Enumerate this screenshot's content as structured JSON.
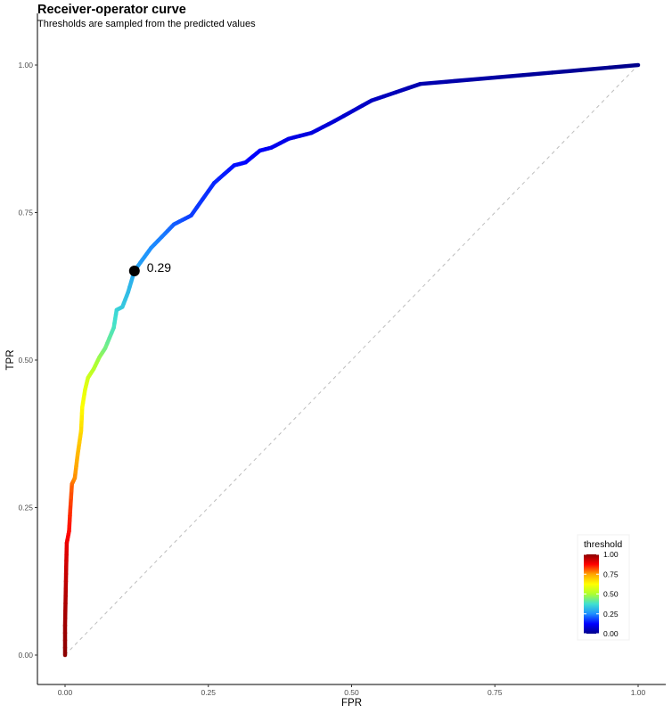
{
  "chart_data": {
    "type": "line",
    "title": "Receiver-operator curve",
    "subtitle": "Thresholds are sampled from the predicted values",
    "xlabel": "FPR",
    "ylabel": "TPR",
    "xlim": [
      0,
      1
    ],
    "ylim": [
      0,
      1
    ],
    "x_ticks": [
      "0.00",
      "0.25",
      "0.50",
      "0.75",
      "1.00"
    ],
    "y_ticks": [
      "0.00",
      "0.25",
      "0.50",
      "0.75",
      "1.00"
    ],
    "grid": false,
    "reference_line": "diagonal",
    "legend": {
      "title": "threshold",
      "placement": "bottom-right",
      "type": "colorbar",
      "range": [
        0,
        1
      ],
      "ticks": [
        "0.00",
        "0.25",
        "0.50",
        "0.75",
        "1.00"
      ],
      "colors": [
        "#00008b",
        "#0000ff",
        "#1e90ff",
        "#40e0d0",
        "#adff2f",
        "#ffff00",
        "#ffa500",
        "#ff0000",
        "#8b0000"
      ]
    },
    "highlight": {
      "x": 0.121,
      "y": 0.651,
      "label": "0.29"
    },
    "points": [
      {
        "x": 0.0,
        "y": 0.0,
        "t": 1.0
      },
      {
        "x": 0.0,
        "y": 0.05,
        "t": 0.98
      },
      {
        "x": 0.001,
        "y": 0.1,
        "t": 0.96
      },
      {
        "x": 0.002,
        "y": 0.15,
        "t": 0.93
      },
      {
        "x": 0.003,
        "y": 0.19,
        "t": 0.9
      },
      {
        "x": 0.007,
        "y": 0.21,
        "t": 0.87
      },
      {
        "x": 0.009,
        "y": 0.245,
        "t": 0.84
      },
      {
        "x": 0.012,
        "y": 0.29,
        "t": 0.8
      },
      {
        "x": 0.017,
        "y": 0.3,
        "t": 0.77
      },
      {
        "x": 0.022,
        "y": 0.34,
        "t": 0.73
      },
      {
        "x": 0.028,
        "y": 0.38,
        "t": 0.68
      },
      {
        "x": 0.03,
        "y": 0.42,
        "t": 0.63
      },
      {
        "x": 0.035,
        "y": 0.45,
        "t": 0.59
      },
      {
        "x": 0.04,
        "y": 0.47,
        "t": 0.56
      },
      {
        "x": 0.05,
        "y": 0.485,
        "t": 0.52
      },
      {
        "x": 0.06,
        "y": 0.505,
        "t": 0.48
      },
      {
        "x": 0.07,
        "y": 0.52,
        "t": 0.44
      },
      {
        "x": 0.085,
        "y": 0.555,
        "t": 0.39
      },
      {
        "x": 0.09,
        "y": 0.585,
        "t": 0.36
      },
      {
        "x": 0.1,
        "y": 0.59,
        "t": 0.34
      },
      {
        "x": 0.11,
        "y": 0.615,
        "t": 0.32
      },
      {
        "x": 0.121,
        "y": 0.651,
        "t": 0.29
      },
      {
        "x": 0.135,
        "y": 0.67,
        "t": 0.27
      },
      {
        "x": 0.15,
        "y": 0.69,
        "t": 0.25
      },
      {
        "x": 0.175,
        "y": 0.715,
        "t": 0.23
      },
      {
        "x": 0.19,
        "y": 0.73,
        "t": 0.21
      },
      {
        "x": 0.2,
        "y": 0.735,
        "t": 0.2
      },
      {
        "x": 0.22,
        "y": 0.745,
        "t": 0.18
      },
      {
        "x": 0.26,
        "y": 0.8,
        "t": 0.16
      },
      {
        "x": 0.295,
        "y": 0.83,
        "t": 0.14
      },
      {
        "x": 0.315,
        "y": 0.835,
        "t": 0.13
      },
      {
        "x": 0.34,
        "y": 0.855,
        "t": 0.12
      },
      {
        "x": 0.36,
        "y": 0.86,
        "t": 0.11
      },
      {
        "x": 0.39,
        "y": 0.875,
        "t": 0.1
      },
      {
        "x": 0.43,
        "y": 0.885,
        "t": 0.09
      },
      {
        "x": 0.47,
        "y": 0.905,
        "t": 0.08
      },
      {
        "x": 0.535,
        "y": 0.94,
        "t": 0.06
      },
      {
        "x": 0.62,
        "y": 0.968,
        "t": 0.04
      },
      {
        "x": 0.8,
        "y": 0.983,
        "t": 0.02
      },
      {
        "x": 1.0,
        "y": 1.0,
        "t": 0.0
      }
    ]
  }
}
